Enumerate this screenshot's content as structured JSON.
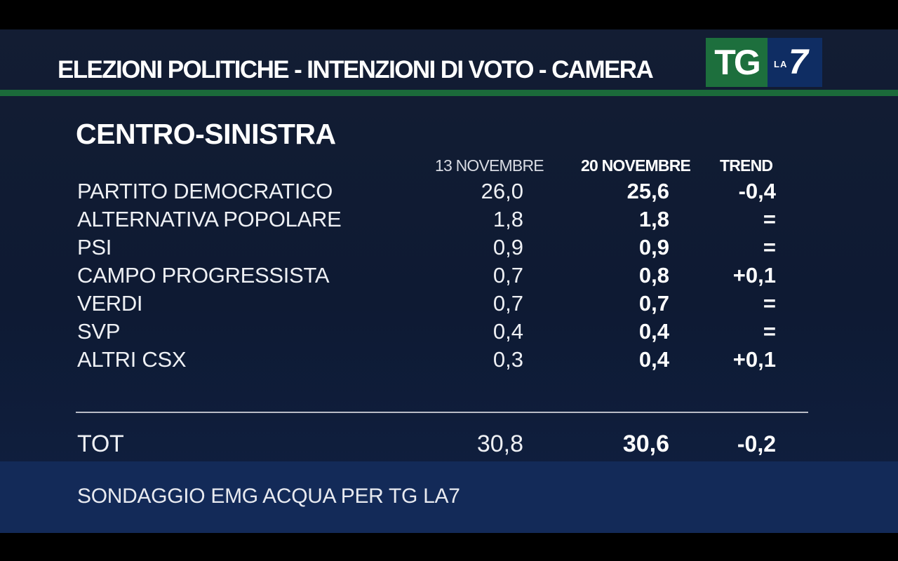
{
  "header": {
    "title": "ELEZIONI POLITICHE - INTENZIONI DI VOTO - CAMERA"
  },
  "logo": {
    "tg": "TG",
    "la": "LA",
    "seven": "7",
    "colors": {
      "tg_bg": "#1d6f3d",
      "la_bg": "#0f2d63"
    }
  },
  "section": {
    "title": "CENTRO-SINISTRA"
  },
  "columns": {
    "date1": "13 NOVEMBRE",
    "date2": "20 NOVEMBRE",
    "trend": "TREND"
  },
  "rows": [
    {
      "party": "PARTITO DEMOCRATICO",
      "nov13": "26,0",
      "nov20": "25,6",
      "trend": "-0,4"
    },
    {
      "party": "ALTERNATIVA POPOLARE",
      "nov13": "1,8",
      "nov20": "1,8",
      "trend": "="
    },
    {
      "party": "PSI",
      "nov13": "0,9",
      "nov20": "0,9",
      "trend": "="
    },
    {
      "party": "CAMPO PROGRESSISTA",
      "nov13": "0,7",
      "nov20": "0,8",
      "trend": "+0,1"
    },
    {
      "party": "VERDI",
      "nov13": "0,7",
      "nov20": "0,7",
      "trend": "="
    },
    {
      "party": "SVP",
      "nov13": "0,4",
      "nov20": "0,4",
      "trend": "="
    },
    {
      "party": "ALTRI CSX",
      "nov13": "0,3",
      "nov20": "0,4",
      "trend": "+0,1"
    }
  ],
  "total": {
    "label": "TOT",
    "nov13": "30,8",
    "nov20": "30,6",
    "trend": "-0,2"
  },
  "footer": {
    "source": "SONDAGGIO EMG ACQUA PER TG LA7"
  },
  "colors": {
    "background": "#0e1a33",
    "header_rule": "#1b6a3a",
    "footer_band": "#132a58"
  }
}
